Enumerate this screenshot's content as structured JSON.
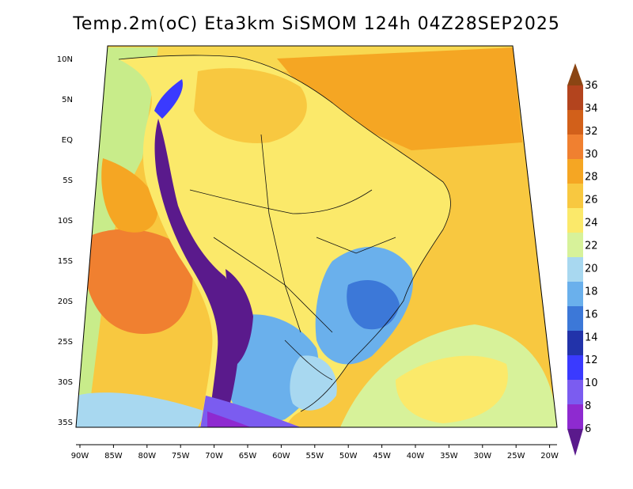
{
  "title": "Temp.2m(oC) Eta3km SiSMOM 124h 04Z28SEP2025",
  "map": {
    "lat_labels": [
      "10N",
      "5N",
      "EQ",
      "5S",
      "10S",
      "15S",
      "20S",
      "25S",
      "30S",
      "35S"
    ],
    "lon_labels": [
      "90W",
      "85W",
      "80W",
      "75W",
      "70W",
      "65W",
      "60W",
      "55W",
      "50W",
      "45W",
      "40W",
      "35W",
      "30W",
      "25W",
      "20W"
    ]
  },
  "colorbar": {
    "levels": [
      "36",
      "34",
      "32",
      "30",
      "28",
      "26",
      "24",
      "22",
      "20",
      "18",
      "16",
      "14",
      "12",
      "10",
      "8",
      "6"
    ],
    "colors": [
      "#8b4513",
      "#b3441e",
      "#d2601a",
      "#f08030",
      "#f5a623",
      "#f8c840",
      "#fbe96a",
      "#d7f29a",
      "#a8d8f0",
      "#6ab0ec",
      "#3c78d8",
      "#2233aa",
      "#3a3aff",
      "#7b5cf0",
      "#8e2ad0",
      "#5a1a8c"
    ]
  }
}
